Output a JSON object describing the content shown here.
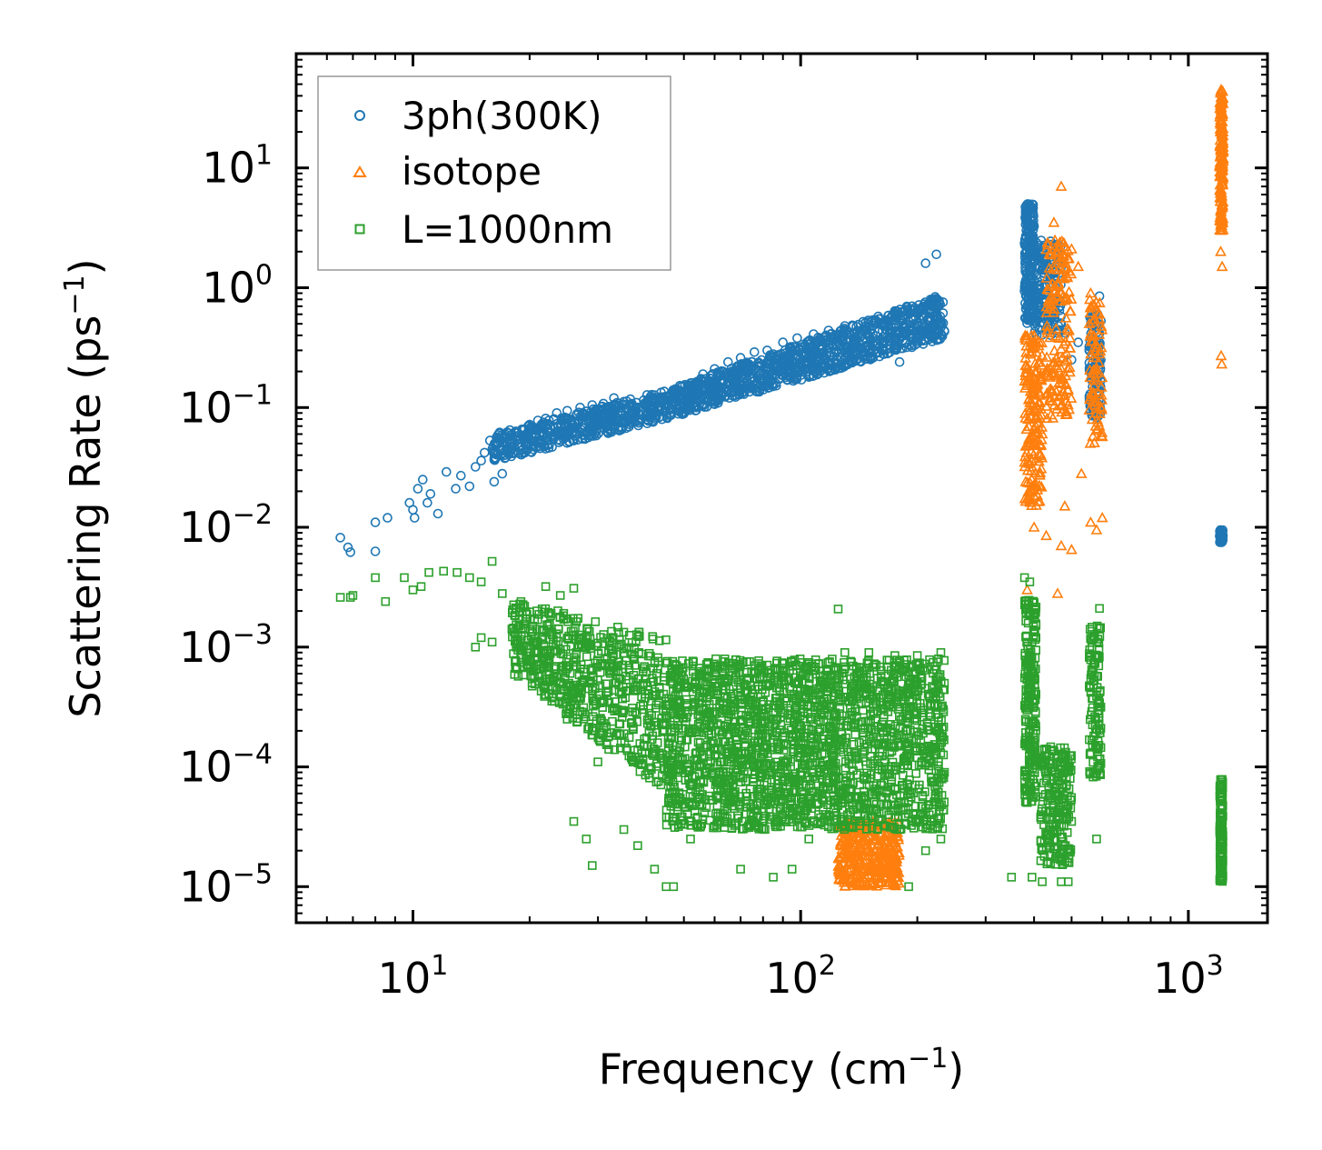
{
  "chart_data": {
    "type": "scatter",
    "title": "",
    "xlabel": "Frequency (cm",
    "xlabel_sup": "−1",
    "xlabel_end": ")",
    "ylabel": "Scattering Rate (ps",
    "ylabel_sup": "−1",
    "ylabel_end": ")",
    "xscale": "log",
    "yscale": "log",
    "xlim": [
      5,
      1600
    ],
    "ylim": [
      5e-06,
      90
    ],
    "x_ticks": [
      {
        "base": "10",
        "exp": "1",
        "value": 10
      },
      {
        "base": "10",
        "exp": "2",
        "value": 100
      },
      {
        "base": "10",
        "exp": "3",
        "value": 1000
      }
    ],
    "y_ticks": [
      {
        "base": "10",
        "exp": "1",
        "value": 10
      },
      {
        "base": "10",
        "exp": "0",
        "value": 1
      },
      {
        "base": "10",
        "exp": "−1",
        "value": 0.1
      },
      {
        "base": "10",
        "exp": "−2",
        "value": 0.01
      },
      {
        "base": "10",
        "exp": "−3",
        "value": 0.001
      },
      {
        "base": "10",
        "exp": "−4",
        "value": 0.0001
      },
      {
        "base": "10",
        "exp": "−5",
        "value": 1e-05
      }
    ],
    "legend_position": "top-left",
    "series": [
      {
        "name": "3ph(300K)",
        "marker": "circle",
        "color": "#1f77b4",
        "points": [
          [
            6.5,
            0.0082
          ],
          [
            6.8,
            0.0068
          ],
          [
            6.9,
            0.0062
          ],
          [
            8.0,
            0.011
          ],
          [
            8.0,
            0.0063
          ],
          [
            8.6,
            0.012
          ],
          [
            9.8,
            0.016
          ],
          [
            10.0,
            0.014
          ],
          [
            10.1,
            0.012
          ],
          [
            10.3,
            0.021
          ],
          [
            10.6,
            0.025
          ],
          [
            10.9,
            0.016
          ],
          [
            11.1,
            0.019
          ],
          [
            11.6,
            0.013
          ],
          [
            12.2,
            0.029
          ],
          [
            12.9,
            0.021
          ],
          [
            13.3,
            0.027
          ],
          [
            14.0,
            0.022
          ],
          [
            14.5,
            0.032
          ],
          [
            15.0,
            0.036
          ],
          [
            15.3,
            0.042
          ],
          [
            15.8,
            0.053
          ],
          [
            16.2,
            0.024
          ],
          [
            16.7,
            0.061
          ],
          [
            17.0,
            0.028
          ],
          [
            17.5,
            0.045
          ],
          [
            18.0,
            0.052
          ],
          [
            18.6,
            0.058
          ],
          [
            19.4,
            0.066
          ],
          [
            20.0,
            0.072
          ],
          [
            21.0,
            0.078
          ],
          [
            22.0,
            0.081
          ],
          [
            23.5,
            0.09
          ],
          [
            25.0,
            0.094
          ],
          [
            27.0,
            0.1
          ],
          [
            29.0,
            0.105
          ],
          [
            31.0,
            0.108
          ],
          [
            33.0,
            0.12
          ],
          [
            35.0,
            0.112
          ],
          [
            38.0,
            0.098
          ],
          [
            40.0,
            0.11
          ],
          [
            44.0,
            0.12
          ],
          [
            48.0,
            0.14
          ],
          [
            52.0,
            0.16
          ],
          [
            56.0,
            0.19
          ],
          [
            60.0,
            0.21
          ],
          [
            65.0,
            0.24
          ],
          [
            70.0,
            0.26
          ],
          [
            76.0,
            0.29
          ],
          [
            82.0,
            0.3
          ],
          [
            90.0,
            0.35
          ],
          [
            98.0,
            0.38
          ],
          [
            108.0,
            0.41
          ],
          [
            118.0,
            0.44
          ],
          [
            130.0,
            0.48
          ],
          [
            145.0,
            0.52
          ],
          [
            160.0,
            0.55
          ],
          [
            175.0,
            0.58
          ],
          [
            190.0,
            0.62
          ],
          [
            205.0,
            0.66
          ],
          [
            215.0,
            0.74
          ],
          [
            225.0,
            0.8
          ],
          [
            210.0,
            1.6
          ],
          [
            224.0,
            1.9
          ],
          [
            180.0,
            0.24
          ],
          [
            385.0,
            5.0
          ],
          [
            390.0,
            3.0
          ],
          [
            392.0,
            1.0
          ],
          [
            395.0,
            0.6
          ],
          [
            400.0,
            0.85
          ],
          [
            420.0,
            0.7
          ],
          [
            430.0,
            0.9
          ],
          [
            440.0,
            1.7
          ],
          [
            450.0,
            1.2
          ],
          [
            470.0,
            0.5
          ],
          [
            480.0,
            0.42
          ],
          [
            500.0,
            0.25
          ],
          [
            520.0,
            0.35
          ],
          [
            560.0,
            0.2
          ],
          [
            570.0,
            0.3
          ],
          [
            580.0,
            0.15
          ],
          [
            590.0,
            0.85
          ],
          [
            1210.0,
            0.0095
          ],
          [
            1215.0,
            0.0075
          ],
          [
            1220.0,
            0.0085
          ]
        ],
        "clusters": [
          {
            "xmin": 16,
            "xmax": 45,
            "ymin_start": 0.035,
            "ymax_start": 0.06,
            "ymin_end": 0.08,
            "ymax_end": 0.14,
            "n": 520
          },
          {
            "xmin": 45,
            "xmax": 235,
            "ymin_start": 0.08,
            "ymax_start": 0.14,
            "ymin_end": 0.38,
            "ymax_end": 0.9,
            "n": 1100
          },
          {
            "xmin": 378,
            "xmax": 400,
            "ymin_start": 0.5,
            "ymax_start": 5.0,
            "ymin_end": 0.5,
            "ymax_end": 5.0,
            "n": 220
          },
          {
            "xmin": 400,
            "xmax": 470,
            "ymin_start": 0.4,
            "ymax_start": 2.5,
            "ymin_end": 0.4,
            "ymax_end": 2.5,
            "n": 160
          },
          {
            "xmin": 555,
            "xmax": 595,
            "ymin_start": 0.08,
            "ymax_start": 0.6,
            "ymin_end": 0.08,
            "ymax_end": 0.6,
            "n": 120
          },
          {
            "xmin": 1205,
            "xmax": 1228,
            "ymin_start": 0.0075,
            "ymax_start": 0.0095,
            "ymin_end": 0.0075,
            "ymax_end": 0.0095,
            "n": 60
          }
        ]
      },
      {
        "name": "isotope",
        "marker": "triangle",
        "color": "#ff7f0e",
        "points": [
          [
            1215.0,
            45.0
          ],
          [
            1220.0,
            35.0
          ],
          [
            1210.0,
            20.0
          ],
          [
            1225.0,
            8.0
          ],
          [
            1218.0,
            3.0
          ],
          [
            1212.0,
            2.0
          ],
          [
            1222.0,
            1.5
          ],
          [
            1215.0,
            0.27
          ],
          [
            1220.0,
            0.23
          ],
          [
            470.0,
            7.0
          ],
          [
            450.0,
            3.5
          ],
          [
            460.0,
            2.0
          ],
          [
            500.0,
            2.1
          ],
          [
            520.0,
            1.5
          ],
          [
            560.0,
            0.9
          ],
          [
            590.0,
            0.6
          ],
          [
            390.0,
            0.05
          ],
          [
            395.0,
            0.02
          ],
          [
            400.0,
            0.01
          ],
          [
            430.0,
            0.0085
          ],
          [
            460.0,
            0.0028
          ],
          [
            470.0,
            0.007
          ],
          [
            480.0,
            0.015
          ],
          [
            500.0,
            0.0065
          ],
          [
            530.0,
            0.028
          ],
          [
            560.0,
            0.011
          ],
          [
            580.0,
            0.0095
          ],
          [
            600.0,
            0.012
          ],
          [
            384.0,
            0.003
          ],
          [
            420.0,
            0.06
          ],
          [
            440.0,
            0.12
          ]
        ],
        "clusters": [
          {
            "xmin": 1205,
            "xmax": 1230,
            "ymin_start": 3.0,
            "ymax_start": 45.0,
            "ymin_end": 3.0,
            "ymax_end": 45.0,
            "n": 160
          },
          {
            "xmin": 378,
            "xmax": 420,
            "ymin_start": 0.015,
            "ymax_start": 0.4,
            "ymin_end": 0.015,
            "ymax_end": 0.4,
            "n": 180
          },
          {
            "xmin": 430,
            "xmax": 500,
            "ymin_start": 0.08,
            "ymax_start": 2.5,
            "ymin_end": 0.08,
            "ymax_end": 2.5,
            "n": 160
          },
          {
            "xmin": 555,
            "xmax": 600,
            "ymin_start": 0.05,
            "ymax_start": 0.8,
            "ymin_end": 0.05,
            "ymax_end": 0.8,
            "n": 80
          },
          {
            "xmin": 125,
            "xmax": 180,
            "ymin_start": 1e-05,
            "ymax_start": 3.5e-05,
            "ymin_end": 1e-05,
            "ymax_end": 3.5e-05,
            "n": 380
          }
        ]
      },
      {
        "name": "L=1000nm",
        "marker": "square",
        "color": "#2ca02c",
        "points": [
          [
            6.5,
            0.0026
          ],
          [
            6.9,
            0.0026
          ],
          [
            7.0,
            0.0027
          ],
          [
            8.0,
            0.0038
          ],
          [
            8.5,
            0.0024
          ],
          [
            9.5,
            0.0038
          ],
          [
            10.0,
            0.003
          ],
          [
            10.5,
            0.0032
          ],
          [
            11.0,
            0.0042
          ],
          [
            12.0,
            0.0043
          ],
          [
            13.0,
            0.0042
          ],
          [
            14.0,
            0.0038
          ],
          [
            15.0,
            0.0035
          ],
          [
            16.0,
            0.0052
          ],
          [
            17.0,
            0.0028
          ],
          [
            14.5,
            0.001
          ],
          [
            15.0,
            0.0012
          ],
          [
            16.0,
            0.0011
          ],
          [
            19.0,
            0.0024
          ],
          [
            22.0,
            0.0032
          ],
          [
            24.0,
            0.0027
          ],
          [
            26.0,
            0.0031
          ],
          [
            20.0,
            0.0008
          ],
          [
            22.0,
            0.0004
          ],
          [
            25.0,
            0.00025
          ],
          [
            26.0,
            3.5e-05
          ],
          [
            28.0,
            2.5e-05
          ],
          [
            30.0,
            0.00011
          ],
          [
            32.0,
            0.00014
          ],
          [
            29.0,
            1.5e-05
          ],
          [
            35.0,
            3e-05
          ],
          [
            38.0,
            2.2e-05
          ],
          [
            42.0,
            1.4e-05
          ],
          [
            45.0,
            1e-05
          ],
          [
            47.0,
            1e-05
          ],
          [
            52.0,
            2.5e-05
          ],
          [
            60.0,
            3.2e-05
          ],
          [
            70.0,
            1.4e-05
          ],
          [
            85.0,
            1.2e-05
          ],
          [
            95.0,
            1.4e-05
          ],
          [
            105.0,
            2.5e-05
          ],
          [
            125.0,
            0.00208
          ],
          [
            130.0,
            0.0009
          ],
          [
            150.0,
            0.0009
          ],
          [
            175.0,
            0.00085
          ],
          [
            200.0,
            0.00085
          ],
          [
            230.0,
            0.0009
          ],
          [
            190.0,
            1e-05
          ],
          [
            210.0,
            2e-05
          ],
          [
            230.0,
            2.5e-05
          ],
          [
            235.0,
            9e-05
          ],
          [
            350.0,
            1.2e-05
          ],
          [
            395.0,
            1.2e-05
          ],
          [
            420.0,
            1.1e-05
          ],
          [
            470.0,
            1.1e-05
          ],
          [
            490.0,
            1.1e-05
          ],
          [
            378.0,
            0.0038
          ],
          [
            390.0,
            0.0035
          ],
          [
            500.0,
            3.5e-05
          ],
          [
            590.0,
            0.0021
          ],
          [
            580.0,
            2.5e-05
          ]
        ],
        "clusters": [
          {
            "xmin": 18,
            "xmax": 45,
            "ymin_start": 0.0006,
            "ymax_start": 0.0025,
            "ymin_end": 6e-05,
            "ymax_end": 0.0012,
            "n": 650
          },
          {
            "xmin": 45,
            "xmax": 235,
            "ymin_start": 3e-05,
            "ymax_start": 0.0008,
            "ymin_end": 3e-05,
            "ymax_end": 0.0008,
            "n": 2200
          },
          {
            "xmin": 378,
            "xmax": 405,
            "ymin_start": 5e-05,
            "ymax_start": 0.0025,
            "ymin_end": 5e-05,
            "ymax_end": 0.0025,
            "n": 220
          },
          {
            "xmin": 415,
            "xmax": 500,
            "ymin_start": 1.5e-05,
            "ymax_start": 0.00015,
            "ymin_end": 1.5e-05,
            "ymax_end": 0.00015,
            "n": 220
          },
          {
            "xmin": 555,
            "xmax": 595,
            "ymin_start": 8e-05,
            "ymax_start": 0.0015,
            "ymin_end": 8e-05,
            "ymax_end": 0.0015,
            "n": 120
          },
          {
            "xmin": 1205,
            "xmax": 1228,
            "ymin_start": 1.1e-05,
            "ymax_start": 8e-05,
            "ymin_end": 1.1e-05,
            "ymax_end": 8e-05,
            "n": 160
          }
        ]
      }
    ]
  }
}
